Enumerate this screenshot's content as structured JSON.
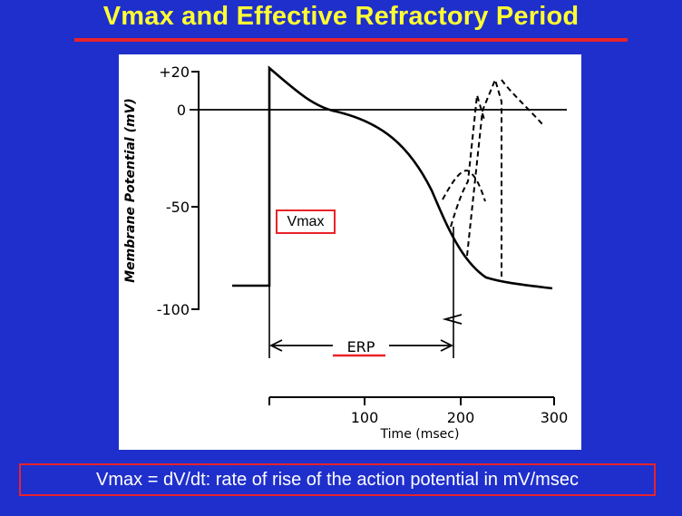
{
  "slide": {
    "title": "Vmax and Effective Refractory Period",
    "definition": "Vmax = dV/dt: rate of rise of the action potential in mV/msec"
  },
  "figure": {
    "y_axis_label": "Membrane Potential (mV)",
    "y_ticks": [
      "+20",
      "0",
      "-50",
      "-100"
    ],
    "x_axis_label": "Time (msec)",
    "x_ticks": [
      "100",
      "200",
      "300"
    ],
    "erp_label": "ERP",
    "vmax_label": "Vmax"
  },
  "colors": {
    "background": "#1f2fcc",
    "title": "#ffff33",
    "accent_red": "#e8232a",
    "panel": "#ffffff"
  }
}
